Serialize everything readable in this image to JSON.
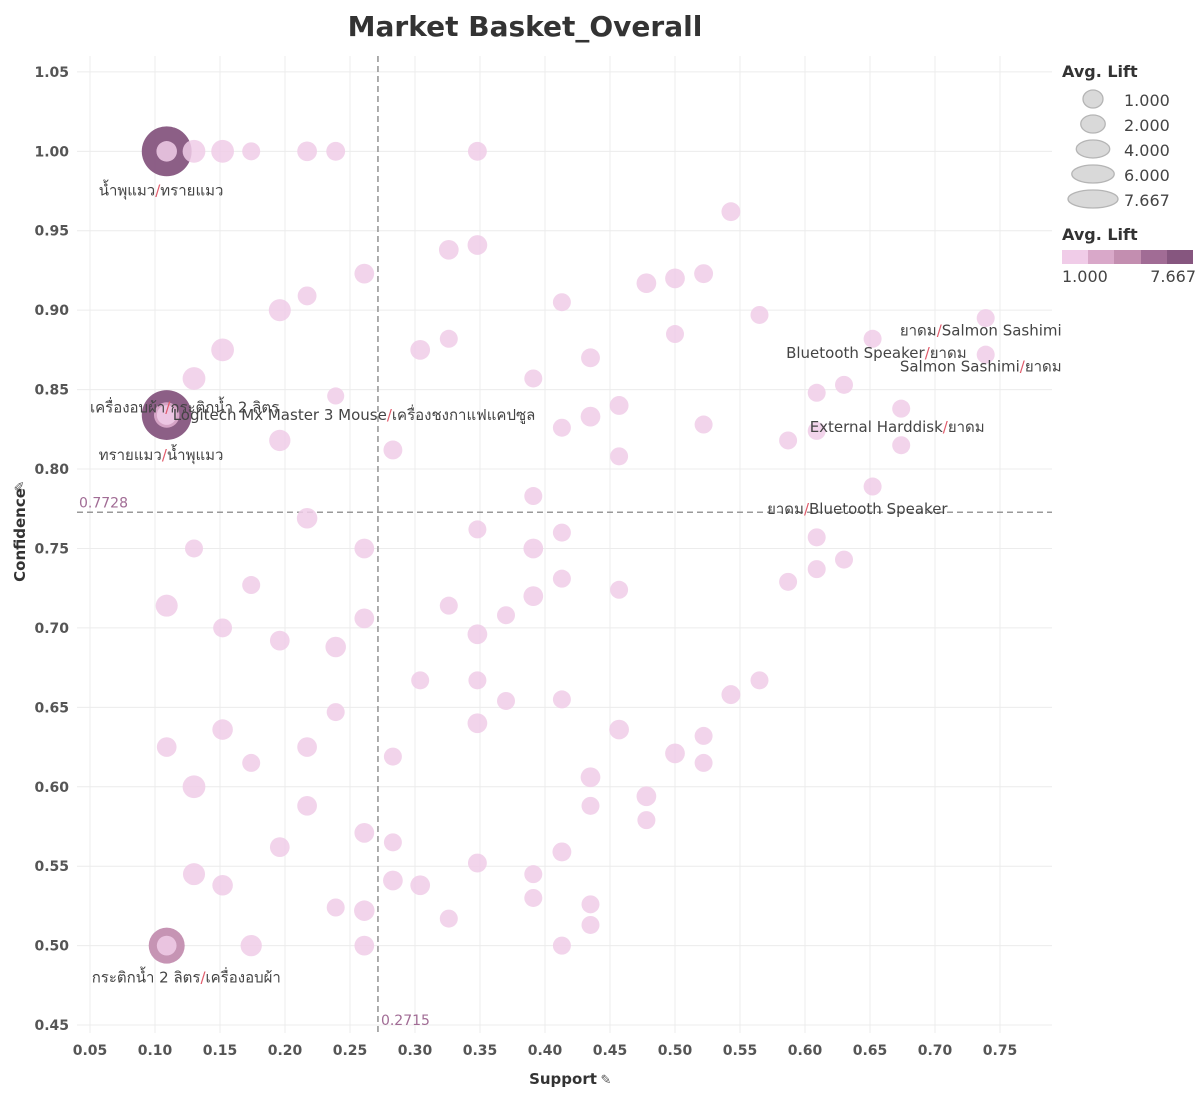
{
  "title": "Market Basket_Overall",
  "chart_data": {
    "type": "scatter",
    "title": "Market Basket_Overall",
    "xlabel": "Support",
    "ylabel": "Confidence",
    "xlim": [
      0.04,
      0.79
    ],
    "ylim": [
      0.445,
      1.06
    ],
    "xticks": [
      "0.05",
      "0.10",
      "0.15",
      "0.20",
      "0.25",
      "0.30",
      "0.35",
      "0.40",
      "0.45",
      "0.50",
      "0.55",
      "0.60",
      "0.65",
      "0.70",
      "0.75"
    ],
    "yticks": [
      "1.05",
      "1.00",
      "0.95",
      "0.90",
      "0.85",
      "0.80",
      "0.75",
      "0.70",
      "0.65",
      "0.60",
      "0.55",
      "0.50",
      "0.45"
    ],
    "grid": true,
    "reference_lines": {
      "x": {
        "value": 0.2715,
        "label": "0.2715"
      },
      "y": {
        "value": 0.7728,
        "label": "0.7728"
      }
    },
    "size_legend": {
      "title": "Avg. Lift",
      "values": [
        "1.000",
        "2.000",
        "4.000",
        "6.000",
        "7.667"
      ]
    },
    "color_legend": {
      "title": "Avg. Lift",
      "min_label": "1.000",
      "max_label": "7.667",
      "colors": [
        "#f0cce8",
        "#d9a8c9",
        "#c38eb0",
        "#a16c95",
        "#86567f"
      ]
    },
    "points": [
      {
        "x": 0.109,
        "y": 1.0,
        "lift": 7.667
      },
      {
        "x": 0.109,
        "y": 0.834,
        "lift": 7.667
      },
      {
        "x": 0.109,
        "y": 0.5,
        "lift": 4.0
      },
      {
        "x": 0.109,
        "y": 1.0,
        "lift": 1.3
      },
      {
        "x": 0.109,
        "y": 0.834,
        "lift": 2.0
      },
      {
        "x": 0.109,
        "y": 0.834,
        "lift": 1.2
      },
      {
        "x": 0.109,
        "y": 0.5,
        "lift": 1.2
      },
      {
        "x": 0.13,
        "y": 1.0,
        "lift": 1.6
      },
      {
        "x": 0.152,
        "y": 1.0,
        "lift": 1.6
      },
      {
        "x": 0.174,
        "y": 1.0,
        "lift": 1.0
      },
      {
        "x": 0.217,
        "y": 1.0,
        "lift": 1.2
      },
      {
        "x": 0.239,
        "y": 1.0,
        "lift": 1.1
      },
      {
        "x": 0.348,
        "y": 1.0,
        "lift": 1.1
      },
      {
        "x": 0.543,
        "y": 0.962,
        "lift": 1.1
      },
      {
        "x": 0.326,
        "y": 0.938,
        "lift": 1.2
      },
      {
        "x": 0.348,
        "y": 0.941,
        "lift": 1.2
      },
      {
        "x": 0.261,
        "y": 0.923,
        "lift": 1.2
      },
      {
        "x": 0.478,
        "y": 0.917,
        "lift": 1.2
      },
      {
        "x": 0.5,
        "y": 0.92,
        "lift": 1.2
      },
      {
        "x": 0.522,
        "y": 0.923,
        "lift": 1.1
      },
      {
        "x": 0.217,
        "y": 0.909,
        "lift": 1.1
      },
      {
        "x": 0.413,
        "y": 0.905,
        "lift": 1.0
      },
      {
        "x": 0.196,
        "y": 0.9,
        "lift": 1.5
      },
      {
        "x": 0.565,
        "y": 0.897,
        "lift": 1.0
      },
      {
        "x": 0.739,
        "y": 0.895,
        "lift": 1.0
      },
      {
        "x": 0.652,
        "y": 0.882,
        "lift": 1.0
      },
      {
        "x": 0.5,
        "y": 0.885,
        "lift": 1.0
      },
      {
        "x": 0.326,
        "y": 0.882,
        "lift": 1.0
      },
      {
        "x": 0.152,
        "y": 0.875,
        "lift": 1.6
      },
      {
        "x": 0.304,
        "y": 0.875,
        "lift": 1.2
      },
      {
        "x": 0.739,
        "y": 0.872,
        "lift": 1.0
      },
      {
        "x": 0.435,
        "y": 0.87,
        "lift": 1.1
      },
      {
        "x": 0.13,
        "y": 0.857,
        "lift": 1.6
      },
      {
        "x": 0.391,
        "y": 0.857,
        "lift": 1.0
      },
      {
        "x": 0.63,
        "y": 0.853,
        "lift": 1.0
      },
      {
        "x": 0.609,
        "y": 0.848,
        "lift": 1.0
      },
      {
        "x": 0.239,
        "y": 0.846,
        "lift": 0.9
      },
      {
        "x": 0.457,
        "y": 0.84,
        "lift": 1.1
      },
      {
        "x": 0.674,
        "y": 0.838,
        "lift": 1.0
      },
      {
        "x": 0.435,
        "y": 0.833,
        "lift": 1.2
      },
      {
        "x": 0.522,
        "y": 0.828,
        "lift": 1.0
      },
      {
        "x": 0.413,
        "y": 0.826,
        "lift": 1.0
      },
      {
        "x": 0.609,
        "y": 0.824,
        "lift": 1.0
      },
      {
        "x": 0.196,
        "y": 0.818,
        "lift": 1.4
      },
      {
        "x": 0.587,
        "y": 0.818,
        "lift": 1.0
      },
      {
        "x": 0.674,
        "y": 0.815,
        "lift": 1.0
      },
      {
        "x": 0.283,
        "y": 0.812,
        "lift": 1.1
      },
      {
        "x": 0.457,
        "y": 0.808,
        "lift": 1.0
      },
      {
        "x": 0.652,
        "y": 0.789,
        "lift": 1.0
      },
      {
        "x": 0.391,
        "y": 0.783,
        "lift": 1.0
      },
      {
        "x": 0.217,
        "y": 0.769,
        "lift": 1.3
      },
      {
        "x": 0.348,
        "y": 0.762,
        "lift": 1.0
      },
      {
        "x": 0.413,
        "y": 0.76,
        "lift": 1.0
      },
      {
        "x": 0.609,
        "y": 0.757,
        "lift": 1.0
      },
      {
        "x": 0.13,
        "y": 0.75,
        "lift": 1.0
      },
      {
        "x": 0.261,
        "y": 0.75,
        "lift": 1.2
      },
      {
        "x": 0.391,
        "y": 0.75,
        "lift": 1.2
      },
      {
        "x": 0.63,
        "y": 0.743,
        "lift": 1.0
      },
      {
        "x": 0.609,
        "y": 0.737,
        "lift": 1.0
      },
      {
        "x": 0.413,
        "y": 0.731,
        "lift": 1.0
      },
      {
        "x": 0.587,
        "y": 0.729,
        "lift": 1.0
      },
      {
        "x": 0.174,
        "y": 0.727,
        "lift": 1.0
      },
      {
        "x": 0.457,
        "y": 0.724,
        "lift": 1.0
      },
      {
        "x": 0.391,
        "y": 0.72,
        "lift": 1.2
      },
      {
        "x": 0.326,
        "y": 0.714,
        "lift": 1.0
      },
      {
        "x": 0.109,
        "y": 0.714,
        "lift": 1.5
      },
      {
        "x": 0.37,
        "y": 0.708,
        "lift": 1.0
      },
      {
        "x": 0.261,
        "y": 0.706,
        "lift": 1.2
      },
      {
        "x": 0.152,
        "y": 0.7,
        "lift": 1.1
      },
      {
        "x": 0.348,
        "y": 0.696,
        "lift": 1.2
      },
      {
        "x": 0.196,
        "y": 0.692,
        "lift": 1.2
      },
      {
        "x": 0.239,
        "y": 0.688,
        "lift": 1.3
      },
      {
        "x": 0.304,
        "y": 0.667,
        "lift": 1.0
      },
      {
        "x": 0.348,
        "y": 0.667,
        "lift": 1.0
      },
      {
        "x": 0.565,
        "y": 0.667,
        "lift": 1.0
      },
      {
        "x": 0.543,
        "y": 0.658,
        "lift": 1.1
      },
      {
        "x": 0.413,
        "y": 0.655,
        "lift": 1.0
      },
      {
        "x": 0.37,
        "y": 0.654,
        "lift": 1.0
      },
      {
        "x": 0.239,
        "y": 0.647,
        "lift": 1.0
      },
      {
        "x": 0.348,
        "y": 0.64,
        "lift": 1.2
      },
      {
        "x": 0.152,
        "y": 0.636,
        "lift": 1.3
      },
      {
        "x": 0.457,
        "y": 0.636,
        "lift": 1.2
      },
      {
        "x": 0.522,
        "y": 0.632,
        "lift": 1.0
      },
      {
        "x": 0.109,
        "y": 0.625,
        "lift": 1.2
      },
      {
        "x": 0.217,
        "y": 0.625,
        "lift": 1.2
      },
      {
        "x": 0.5,
        "y": 0.621,
        "lift": 1.2
      },
      {
        "x": 0.283,
        "y": 0.619,
        "lift": 1.0
      },
      {
        "x": 0.174,
        "y": 0.615,
        "lift": 1.0
      },
      {
        "x": 0.522,
        "y": 0.615,
        "lift": 1.0
      },
      {
        "x": 0.435,
        "y": 0.606,
        "lift": 1.2
      },
      {
        "x": 0.13,
        "y": 0.6,
        "lift": 1.6
      },
      {
        "x": 0.478,
        "y": 0.594,
        "lift": 1.2
      },
      {
        "x": 0.217,
        "y": 0.588,
        "lift": 1.2
      },
      {
        "x": 0.435,
        "y": 0.588,
        "lift": 1.0
      },
      {
        "x": 0.478,
        "y": 0.579,
        "lift": 1.0
      },
      {
        "x": 0.261,
        "y": 0.571,
        "lift": 1.2
      },
      {
        "x": 0.283,
        "y": 0.565,
        "lift": 1.0
      },
      {
        "x": 0.196,
        "y": 0.562,
        "lift": 1.2
      },
      {
        "x": 0.413,
        "y": 0.559,
        "lift": 1.1
      },
      {
        "x": 0.348,
        "y": 0.552,
        "lift": 1.1
      },
      {
        "x": 0.13,
        "y": 0.545,
        "lift": 1.5
      },
      {
        "x": 0.391,
        "y": 0.545,
        "lift": 1.0
      },
      {
        "x": 0.283,
        "y": 0.541,
        "lift": 1.2
      },
      {
        "x": 0.152,
        "y": 0.538,
        "lift": 1.3
      },
      {
        "x": 0.304,
        "y": 0.538,
        "lift": 1.2
      },
      {
        "x": 0.391,
        "y": 0.53,
        "lift": 1.0
      },
      {
        "x": 0.435,
        "y": 0.526,
        "lift": 1.0
      },
      {
        "x": 0.239,
        "y": 0.524,
        "lift": 1.0
      },
      {
        "x": 0.261,
        "y": 0.522,
        "lift": 1.3
      },
      {
        "x": 0.326,
        "y": 0.517,
        "lift": 1.0
      },
      {
        "x": 0.435,
        "y": 0.513,
        "lift": 1.0
      },
      {
        "x": 0.174,
        "y": 0.5,
        "lift": 1.4
      },
      {
        "x": 0.261,
        "y": 0.5,
        "lift": 1.2
      },
      {
        "x": 0.413,
        "y": 0.5,
        "lift": 1.0
      }
    ],
    "annotations": [
      {
        "left": "น้ำพุแมว",
        "right": "ทรายแมว",
        "x": 0.109,
        "y": 1.0,
        "align": "left",
        "dx": -68,
        "dy": 44
      },
      {
        "left": "เครื่องอบผ้า",
        "right": "กระติกน้ำ 2 ลิตร",
        "x": 0.13,
        "y": 0.857,
        "align": "left",
        "dx": -104,
        "dy": 34
      },
      {
        "left": "Logitech Mx Master 3 Mouse",
        "right": "เครื่องชงกาแฟแคปซูล",
        "x": 0.109,
        "y": 0.834,
        "align": "left",
        "dx": 6,
        "dy": 5
      },
      {
        "left": "ทรายแมว",
        "right": "น้ำพุแมว",
        "x": 0.109,
        "y": 0.834,
        "align": "left",
        "dx": -68,
        "dy": 45
      },
      {
        "left": "กระติกน้ำ 2 ลิตร",
        "right": "เครื่องอบผ้า",
        "x": 0.109,
        "y": 0.5,
        "align": "left",
        "dx": -75,
        "dy": 37
      },
      {
        "left": "ยาดม",
        "right": "Salmon Sashimi",
        "x": 0.739,
        "y": 0.872,
        "align": "right",
        "dx": 76,
        "dy": -19
      },
      {
        "left": "Bluetooth Speaker",
        "right": "ยาดม",
        "x": 0.652,
        "y": 0.882,
        "align": "right",
        "dx": 94,
        "dy": 19
      },
      {
        "left": "Salmon Sashimi",
        "right": "ยาดม",
        "x": 0.739,
        "y": 0.872,
        "align": "right",
        "dx": 76,
        "dy": 17
      },
      {
        "left": "External Harddisk",
        "right": "ยาดม",
        "x": 0.609,
        "y": 0.824,
        "align": "left",
        "dx": -7,
        "dy": 1
      },
      {
        "left": "ยาดม",
        "right": "Bluetooth Speaker",
        "x": 0.587,
        "y": 0.773,
        "align": "left",
        "dx": -21,
        "dy": 2
      }
    ]
  }
}
